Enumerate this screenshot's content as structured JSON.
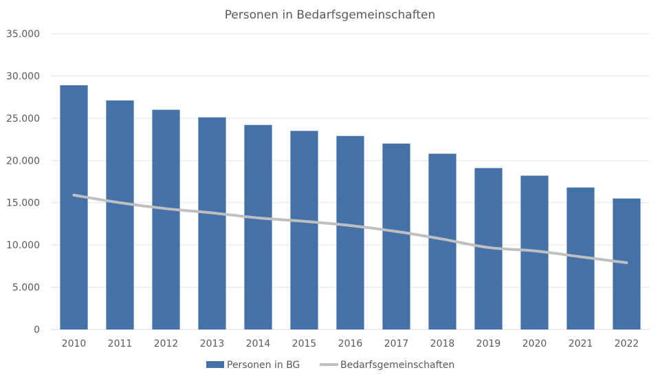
{
  "chart_data": {
    "type": "bar",
    "title": "Personen in Bedarfsgemeinschaften",
    "xlabel": "",
    "ylabel": "",
    "categories": [
      "2010",
      "2011",
      "2012",
      "2013",
      "2014",
      "2015",
      "2016",
      "2017",
      "2018",
      "2019",
      "2020",
      "2021",
      "2022"
    ],
    "ylim": [
      0,
      35000
    ],
    "yticks": [
      0,
      5000,
      10000,
      15000,
      20000,
      25000,
      30000,
      35000
    ],
    "ytick_labels": [
      "0",
      "5.000",
      "10.000",
      "15.000",
      "20.000",
      "25.000",
      "30.000",
      "35.000"
    ],
    "grid": true,
    "legend_position": "bottom",
    "series": [
      {
        "name": "Personen in BG",
        "type": "bar",
        "color": "#4472a8",
        "values": [
          28900,
          27100,
          26000,
          25100,
          24200,
          23500,
          22900,
          22000,
          20800,
          19100,
          18200,
          16800,
          15500
        ]
      },
      {
        "name": "Bedarfsgemeinschaften",
        "type": "line",
        "color": "#bfbfbf",
        "values": [
          15900,
          15000,
          14300,
          13800,
          13200,
          12800,
          12300,
          11600,
          10700,
          9700,
          9300,
          8600,
          7900
        ]
      }
    ]
  }
}
